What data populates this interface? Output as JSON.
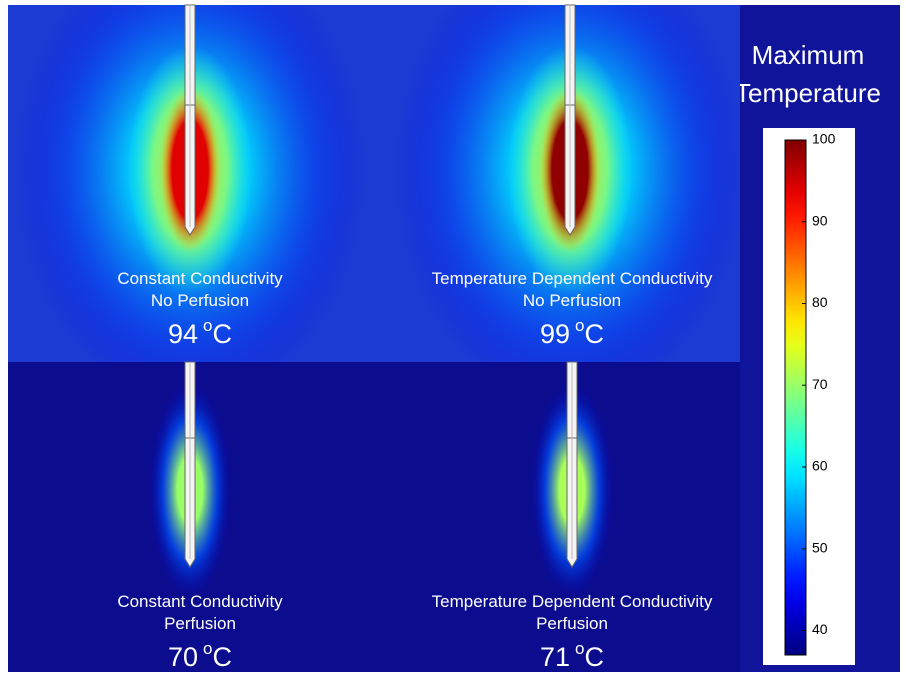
{
  "title": [
    "Maximum",
    "Temperature"
  ],
  "panels": [
    {
      "label": [
        "Constant Conductivity",
        "No Perfusion"
      ],
      "max_temperature": 94,
      "degree": "o",
      "unit": "C",
      "perfusion": false
    },
    {
      "label": [
        "Temperature Dependent Conductivity",
        "No Perfusion"
      ],
      "max_temperature": 99,
      "degree": "o",
      "unit": "C",
      "perfusion": false
    },
    {
      "label": [
        "Constant Conductivity",
        "Perfusion"
      ],
      "max_temperature": 70,
      "degree": "o",
      "unit": "C",
      "perfusion": true
    },
    {
      "label": [
        "Temperature Dependent Conductivity",
        "Perfusion"
      ],
      "max_temperature": 71,
      "degree": "o",
      "unit": "C",
      "perfusion": true
    }
  ],
  "colorbar": {
    "lim": [
      37,
      100
    ],
    "ticks": [
      40,
      50,
      60,
      70,
      80,
      90,
      100
    ]
  }
}
